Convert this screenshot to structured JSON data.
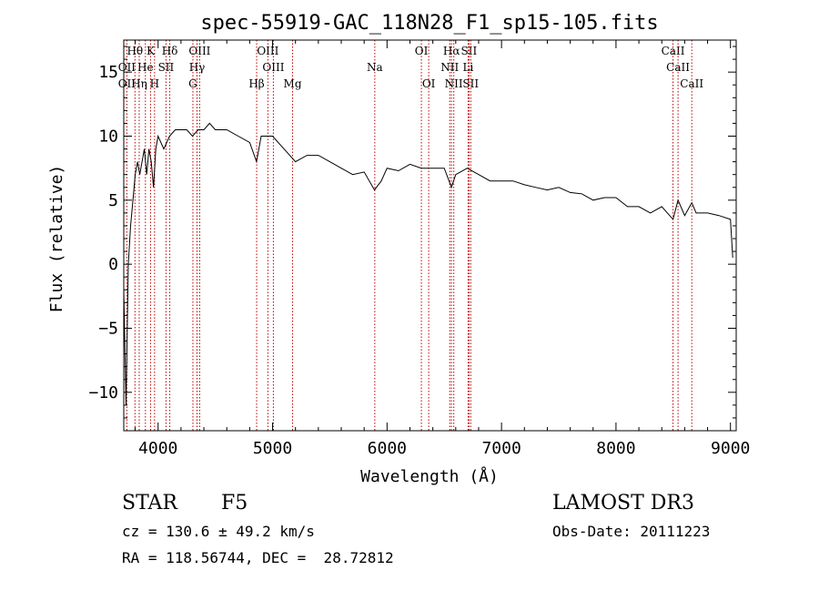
{
  "chart_data": {
    "type": "line",
    "title": "spec-55919-GAC_118N28_F1_sp15-105.fits",
    "xlabel": "Wavelength (Å)",
    "ylabel": "Flux (relative)",
    "xlim": [
      3700,
      9050
    ],
    "ylim": [
      -13,
      17.5
    ],
    "x_ticks": [
      4000,
      5000,
      6000,
      7000,
      8000,
      9000
    ],
    "y_ticks": [
      -10,
      -5,
      0,
      5,
      10,
      15
    ],
    "series": [
      {
        "name": "spectrum",
        "x": [
          3700,
          3720,
          3740,
          3760,
          3780,
          3800,
          3820,
          3840,
          3860,
          3880,
          3900,
          3920,
          3940,
          3960,
          3980,
          4000,
          4050,
          4100,
          4150,
          4200,
          4250,
          4300,
          4350,
          4400,
          4450,
          4500,
          4600,
          4700,
          4800,
          4860,
          4900,
          5000,
          5100,
          5200,
          5300,
          5400,
          5500,
          5600,
          5700,
          5800,
          5890,
          5950,
          6000,
          6100,
          6200,
          6300,
          6400,
          6500,
          6563,
          6600,
          6700,
          6800,
          6900,
          7000,
          7100,
          7200,
          7300,
          7400,
          7500,
          7600,
          7700,
          7800,
          7900,
          8000,
          8100,
          8200,
          8300,
          8400,
          8498,
          8542,
          8600,
          8662,
          8700,
          8800,
          8900,
          9000,
          9020
        ],
        "y": [
          -2,
          -11,
          0,
          3,
          5,
          7,
          8,
          7,
          8,
          9,
          7,
          9,
          8,
          6,
          9,
          10,
          9,
          10,
          10.5,
          10.5,
          10.5,
          10,
          10.5,
          10.5,
          11,
          10.5,
          10.5,
          10,
          9.5,
          8,
          10,
          10,
          9,
          8,
          8.5,
          8.5,
          8,
          7.5,
          7,
          7.2,
          5.8,
          6.5,
          7.5,
          7.3,
          7.8,
          7.5,
          7.5,
          7.5,
          6,
          7,
          7.5,
          7,
          6.5,
          6.5,
          6.5,
          6.2,
          6,
          5.8,
          6,
          5.6,
          5.5,
          5,
          5.2,
          5.2,
          4.5,
          4.5,
          4,
          4.5,
          3.5,
          5,
          3.8,
          4.8,
          4,
          4,
          3.8,
          3.5,
          0.5
        ]
      }
    ],
    "line_labels": [
      {
        "label": "Hθ",
        "wavelength": 3798,
        "row": 1
      },
      {
        "label": "K",
        "wavelength": 3934,
        "row": 1
      },
      {
        "label": "Hδ",
        "wavelength": 4102,
        "row": 1
      },
      {
        "label": "OIII",
        "wavelength": 4363,
        "row": 1
      },
      {
        "label": "OIII",
        "wavelength": 4959,
        "row": 1
      },
      {
        "label": "OI",
        "wavelength": 6300,
        "row": 1
      },
      {
        "label": "Hα",
        "wavelength": 6563,
        "row": 1
      },
      {
        "label": "SII",
        "wavelength": 6716,
        "row": 1
      },
      {
        "label": "CaII",
        "wavelength": 8498,
        "row": 1
      },
      {
        "label": "OII",
        "wavelength": 3727,
        "row": 2
      },
      {
        "label": "He",
        "wavelength": 3889,
        "row": 2
      },
      {
        "label": "SII",
        "wavelength": 4069,
        "row": 2
      },
      {
        "label": "Hγ",
        "wavelength": 4340,
        "row": 2
      },
      {
        "label": "OIII",
        "wavelength": 5007,
        "row": 2
      },
      {
        "label": "Na",
        "wavelength": 5893,
        "row": 2
      },
      {
        "label": "NII",
        "wavelength": 6548,
        "row": 2
      },
      {
        "label": "Li",
        "wavelength": 6708,
        "row": 2
      },
      {
        "label": "CaII",
        "wavelength": 8542,
        "row": 2
      },
      {
        "label": "OII",
        "wavelength": 3727,
        "row": 3
      },
      {
        "label": "Hη",
        "wavelength": 3835,
        "row": 3
      },
      {
        "label": "H",
        "wavelength": 3969,
        "row": 3
      },
      {
        "label": "G",
        "wavelength": 4304,
        "row": 3
      },
      {
        "label": "Hβ",
        "wavelength": 4861,
        "row": 3
      },
      {
        "label": "Mg",
        "wavelength": 5175,
        "row": 3
      },
      {
        "label": "OI",
        "wavelength": 6364,
        "row": 3
      },
      {
        "label": "NII",
        "wavelength": 6583,
        "row": 3
      },
      {
        "label": "SII",
        "wavelength": 6731,
        "row": 3
      },
      {
        "label": "CaII",
        "wavelength": 8662,
        "row": 3
      }
    ],
    "line_color": "#c00000"
  },
  "info": {
    "class": "STAR",
    "subclass": "F5",
    "survey": "LAMOST DR3",
    "cz": "cz = 130.6 ± 49.2 km/s",
    "obs_date": "Obs-Date: 20111223",
    "radec": "RA = 118.56744, DEC =  28.72812"
  }
}
